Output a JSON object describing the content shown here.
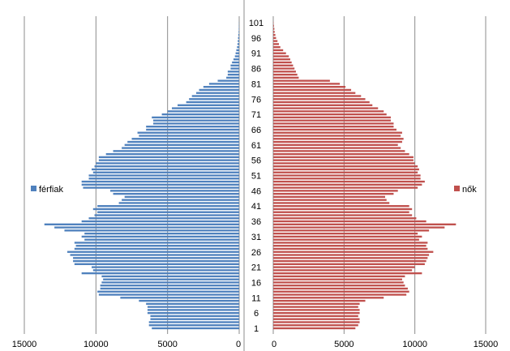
{
  "chart_data": {
    "type": "bar",
    "title": "",
    "orientation": "horizontal-population-pyramid",
    "ages": [
      1,
      2,
      3,
      4,
      5,
      6,
      7,
      8,
      9,
      10,
      11,
      12,
      13,
      14,
      15,
      16,
      17,
      18,
      19,
      20,
      21,
      22,
      23,
      24,
      25,
      26,
      27,
      28,
      29,
      30,
      31,
      32,
      33,
      34,
      35,
      36,
      37,
      38,
      39,
      40,
      41,
      42,
      43,
      44,
      45,
      46,
      47,
      48,
      49,
      50,
      51,
      52,
      53,
      54,
      55,
      56,
      57,
      58,
      59,
      60,
      61,
      62,
      63,
      64,
      65,
      66,
      67,
      68,
      69,
      70,
      71,
      72,
      73,
      74,
      75,
      76,
      77,
      78,
      79,
      80,
      81,
      82,
      83,
      84,
      85,
      86,
      87,
      88,
      89,
      90,
      91,
      92,
      93,
      94,
      95,
      96,
      97,
      98,
      99,
      100,
      101
    ],
    "age_ticks": [
      1,
      6,
      11,
      16,
      21,
      26,
      31,
      36,
      41,
      46,
      51,
      56,
      61,
      66,
      71,
      76,
      81,
      86,
      91,
      96,
      101
    ],
    "series": [
      {
        "name": "férfiak",
        "color": "#4f81bd",
        "side": "left",
        "values": [
          6100,
          6300,
          6300,
          6200,
          6200,
          6400,
          6400,
          6400,
          6500,
          7000,
          8300,
          9800,
          9900,
          9700,
          9700,
          9600,
          9500,
          9600,
          11000,
          10200,
          10300,
          11500,
          11600,
          11600,
          11800,
          12000,
          11500,
          11400,
          11500,
          10800,
          11000,
          10800,
          12200,
          12900,
          13600,
          11000,
          10500,
          10100,
          9900,
          10200,
          9900,
          8400,
          8200,
          8000,
          8800,
          9000,
          10900,
          11000,
          11000,
          10500,
          10500,
          10200,
          10300,
          10100,
          10000,
          9800,
          9800,
          9300,
          8800,
          8200,
          8000,
          7800,
          7500,
          7000,
          7100,
          6500,
          6500,
          6000,
          6000,
          6100,
          5400,
          5000,
          4700,
          4300,
          3700,
          3500,
          3300,
          3000,
          2800,
          2500,
          2100,
          1500,
          900,
          800,
          800,
          600,
          600,
          500,
          400,
          300,
          250,
          200,
          150,
          120,
          100,
          80,
          60,
          40,
          30,
          20,
          10
        ]
      },
      {
        "name": "nők",
        "color": "#c0504d",
        "side": "right",
        "values": [
          5800,
          6000,
          6100,
          6100,
          6000,
          6100,
          6100,
          6000,
          6100,
          6500,
          7800,
          9400,
          9600,
          9500,
          9300,
          9200,
          9100,
          9300,
          10500,
          9800,
          10000,
          10700,
          10800,
          10900,
          11000,
          11300,
          10900,
          10800,
          10900,
          10300,
          10500,
          10200,
          11000,
          12100,
          12900,
          10800,
          10100,
          9800,
          9600,
          9800,
          9600,
          8200,
          8000,
          7900,
          8500,
          8800,
          10200,
          10500,
          10700,
          10400,
          10400,
          10200,
          10300,
          10200,
          10000,
          9900,
          9900,
          9600,
          9300,
          9000,
          8800,
          9100,
          9200,
          9000,
          9100,
          8700,
          8500,
          8500,
          8300,
          8300,
          8000,
          7800,
          7400,
          7000,
          6800,
          6500,
          6200,
          5800,
          5500,
          5100,
          4700,
          4000,
          1800,
          1700,
          1600,
          1500,
          1400,
          1300,
          1200,
          1100,
          900,
          700,
          500,
          400,
          300,
          200,
          150,
          100,
          80,
          50,
          20
        ]
      }
    ],
    "x_ticks": {
      "left": [
        "15000",
        "10000",
        "5000",
        "0"
      ],
      "right": [
        "0",
        "5000",
        "10000",
        "15000"
      ]
    },
    "xlim": [
      0,
      15000
    ],
    "ylim": [
      1,
      101
    ],
    "grid": true,
    "legend_placement": "middle-left and middle-right"
  }
}
